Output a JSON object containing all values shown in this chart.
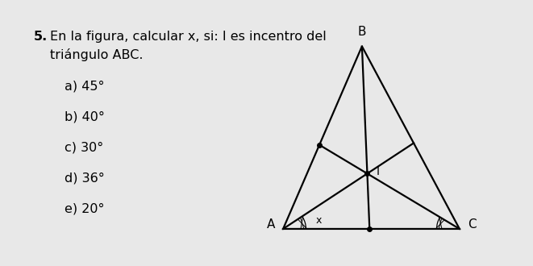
{
  "bg_color": "#e8e8e8",
  "text_color": "#000000",
  "title_number": "5.",
  "title_line1": "En la figura, calcular x, si: I es incentro del",
  "title_line2": "triángulo ABC.",
  "options": [
    "a) 45°",
    "b) 40°",
    "c) 30°",
    "d) 36°",
    "e) 20°"
  ],
  "font_size_title": 11.5,
  "font_size_options": 11.5,
  "A": [
    0.0,
    0.0
  ],
  "B": [
    0.38,
    0.88
  ],
  "C": [
    0.85,
    0.0
  ],
  "label_A": "A",
  "label_B": "B",
  "label_C": "C",
  "label_I": "I",
  "label_x": "x"
}
